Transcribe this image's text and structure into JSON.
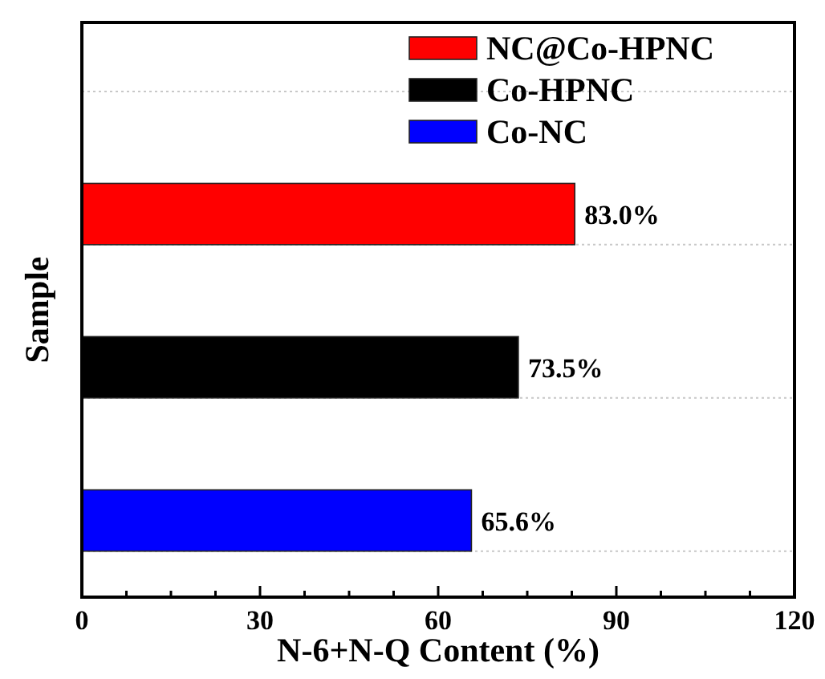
{
  "chart_data": {
    "type": "bar",
    "orientation": "horizontal",
    "xlabel": "N-6+N-Q Content (%)",
    "ylabel": "Sample",
    "categories": [
      null,
      null,
      null
    ],
    "stacked": true,
    "series": [
      {
        "name": "NC@Co-HPNC",
        "color": "#ff0000",
        "values": [
          83.0,
          null,
          null
        ],
        "value_labels": [
          "83.0%",
          null,
          null
        ]
      },
      {
        "name": "Co-HPNC",
        "color": "#000000",
        "values": [
          null,
          73.5,
          null
        ],
        "value_labels": [
          null,
          "73.5%",
          null
        ]
      },
      {
        "name": "Co-NC",
        "color": "#0000ff",
        "values": [
          null,
          null,
          65.6
        ],
        "value_labels": [
          null,
          null,
          "65.6%"
        ]
      }
    ],
    "xlim": [
      0,
      120
    ],
    "xticks": [
      0,
      {
        "value": 7.5,
        "label": null
      },
      {
        "value": 15,
        "label": null
      },
      {
        "value": 22.5,
        "label": null
      },
      30,
      {
        "value": 37.5,
        "label": null
      },
      {
        "value": 45,
        "label": null
      },
      {
        "value": 52.5,
        "label": null
      },
      60,
      {
        "value": 67.5,
        "label": null
      },
      {
        "value": 75,
        "label": null
      },
      {
        "value": 82.5,
        "label": null
      },
      90,
      {
        "value": 97.5,
        "label": null
      },
      {
        "value": 105,
        "label": null
      },
      {
        "value": 112.5,
        "label": null
      },
      120
    ],
    "grid": "y",
    "legend": "top right",
    "tick_labels": "x"
  }
}
